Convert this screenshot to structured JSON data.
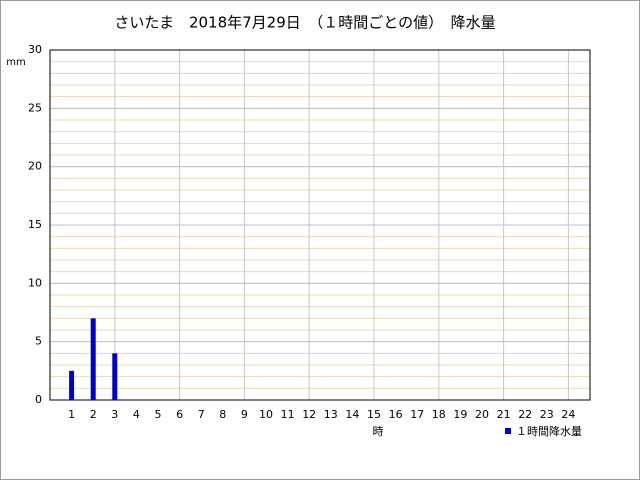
{
  "chart_data": {
    "type": "bar",
    "title": "さいたま　2018年7月29日　（１時間ごとの値）　降水量",
    "y_unit": "mm",
    "x_label": "時",
    "categories": [
      "1",
      "2",
      "3",
      "4",
      "5",
      "6",
      "7",
      "8",
      "9",
      "10",
      "11",
      "12",
      "13",
      "14",
      "15",
      "16",
      "17",
      "18",
      "19",
      "20",
      "21",
      "22",
      "23",
      "24"
    ],
    "series": [
      {
        "name": "１時間降水量",
        "color": "#0000cc",
        "values": [
          2.5,
          7,
          4,
          0,
          0,
          0,
          0,
          0,
          0,
          0,
          0,
          0,
          0,
          0,
          0,
          0,
          0,
          0,
          0,
          0,
          0,
          0,
          0,
          0
        ]
      }
    ],
    "ylim": [
      0,
      30
    ],
    "yticks": [
      0,
      5,
      10,
      15,
      20,
      25,
      30
    ],
    "grid": true
  }
}
